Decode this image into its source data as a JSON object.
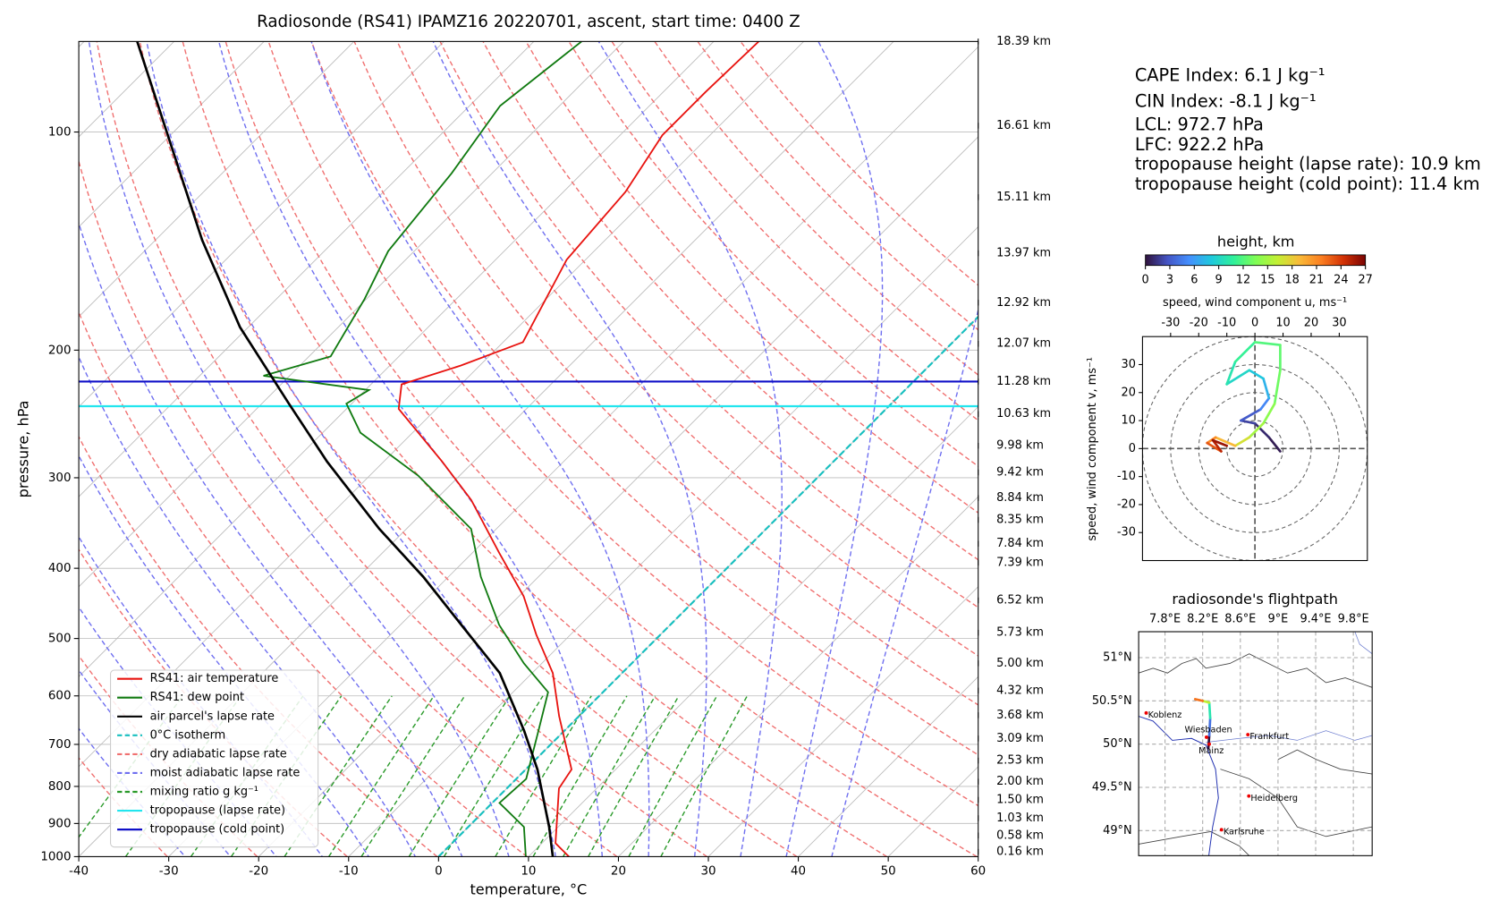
{
  "chart_data": {
    "type": "skewt",
    "title": "Radiosonde (RS41) IPAMZ16 20220701, ascent, start time: 0400 Z",
    "xlabel": "temperature, °C",
    "ylabel": "pressure, hPa",
    "xlim": [
      -40,
      60
    ],
    "ylim": [
      1000,
      75
    ],
    "xticks": [
      -40,
      -30,
      -20,
      -10,
      0,
      10,
      20,
      30,
      40,
      50,
      60
    ],
    "yticks": [
      100,
      200,
      300,
      400,
      500,
      600,
      700,
      800,
      900,
      1000
    ],
    "log_y": true,
    "grid": true,
    "series": [
      {
        "name": "RS41: air temperature",
        "color": "#e8130f",
        "pressure": [
          1000,
          958,
          805,
          758,
          640,
          558,
          494,
          437,
          381,
          322,
          285,
          241,
          223,
          210,
          195,
          150,
          121,
          101,
          88,
          75
        ],
        "values": [
          14.5,
          11.5,
          5.8,
          5.1,
          -2.2,
          -7.7,
          -13.8,
          -19.5,
          -27,
          -36,
          -43.5,
          -54.2,
          -56.6,
          -52.1,
          -47.8,
          -52.1,
          -53.1,
          -55.3,
          -55.3,
          -55
        ]
      },
      {
        "name": "RS41: dew point",
        "color": "#107a10",
        "pressure": [
          1000,
          910,
          843,
          781,
          670,
          593,
          541,
          479,
          411,
          353,
          298,
          260,
          237,
          227,
          217,
          204,
          170,
          146,
          114,
          92,
          75
        ],
        "values": [
          9.7,
          6.2,
          0.8,
          1.1,
          -2.9,
          -6.1,
          -12,
          -19,
          -26.4,
          -32.8,
          -44.6,
          -55.8,
          -60.6,
          -59.6,
          -72.9,
          -67.6,
          -70.2,
          -72.9,
          -74.5,
          -76.6,
          -74.7
        ]
      },
      {
        "name": "air parcel's lapse rate",
        "color": "#000000",
        "pressure": [
          1000,
          910,
          758,
          670,
          558,
          479,
          411,
          353,
          285,
          237,
          186,
          141,
          101,
          75
        ],
        "values": [
          12.7,
          9,
          1.3,
          -4.5,
          -13.6,
          -23.2,
          -32.8,
          -43,
          -56.3,
          -67,
          -80.9,
          -94.8,
          -110.3,
          -124.1
        ]
      }
    ],
    "isotherm_0c": {
      "name": "0°C isotherm",
      "color": "#17bfbf"
    },
    "dry_adiabats": {
      "name": "dry adiabatic lapse rate",
      "color": "#f07070"
    },
    "moist_adiabats": {
      "name": "moist adiabatic lapse rate",
      "color": "#6f6ff0"
    },
    "mixing_ratio": {
      "name": "mixing ratio g kg⁻¹",
      "color": "#2a9a2a"
    },
    "tropopauses": [
      {
        "name": "tropopause (lapse rate)",
        "color": "#22e5ee",
        "pressure": 239
      },
      {
        "name": "tropopause (cold point)",
        "color": "#1010c8",
        "pressure": 221
      }
    ],
    "heights": {
      "pressure": [
        75,
        98,
        123,
        147,
        172,
        196,
        221,
        245,
        271,
        295,
        320,
        343,
        370,
        393,
        443,
        491,
        541,
        590,
        638,
        687,
        737,
        788,
        835,
        885,
        935,
        985
      ],
      "labels": [
        {
          "value": 18.39,
          "label": "18.39 km"
        },
        {
          "value": 16.61,
          "label": "16.61 km"
        },
        {
          "value": 15.11,
          "label": "15.11 km"
        },
        {
          "value": 13.97,
          "label": "13.97 km"
        },
        {
          "value": 12.92,
          "label": "12.92 km"
        },
        {
          "value": 12.07,
          "label": "12.07 km"
        },
        {
          "value": 11.28,
          "label": "11.28 km"
        },
        {
          "value": 10.63,
          "label": "10.63 km"
        },
        {
          "value": 9.98,
          "label": "9.98 km"
        },
        {
          "value": 9.42,
          "label": "9.42 km"
        },
        {
          "value": 8.84,
          "label": "8.84 km"
        },
        {
          "value": 8.35,
          "label": "8.35 km"
        },
        {
          "value": 7.84,
          "label": "7.84 km"
        },
        {
          "value": 7.39,
          "label": "7.39 km"
        },
        {
          "value": 6.52,
          "label": "6.52 km"
        },
        {
          "value": 5.73,
          "label": "5.73 km"
        },
        {
          "value": 5,
          "label": "5.00 km"
        },
        {
          "value": 4.32,
          "label": "4.32 km"
        },
        {
          "value": 3.68,
          "label": "3.68 km"
        },
        {
          "value": 3.09,
          "label": "3.09 km"
        },
        {
          "value": 2.53,
          "label": "2.53 km"
        },
        {
          "value": 2,
          "label": "2.00 km"
        },
        {
          "value": 1.5,
          "label": "1.50 km"
        },
        {
          "value": 1.03,
          "label": "1.03 km"
        },
        {
          "value": 0.58,
          "label": "0.58 km"
        },
        {
          "value": 0.16,
          "label": "0.16 km"
        }
      ]
    }
  },
  "indices": [
    "CAPE Index: 6.1 J kg⁻¹",
    "CIN Index: -8.1 J kg⁻¹",
    "LCL: 972.7 hPa",
    "LFC: 922.2 hPa",
    "tropopause height (lapse rate): 10.9 km",
    "tropopause height (cold point): 11.4 km"
  ],
  "colorbar": {
    "label": "height, km",
    "clim": [
      0,
      27
    ],
    "ticks": [
      0,
      3,
      6,
      9,
      12,
      15,
      18,
      21,
      24,
      27
    ]
  },
  "hodograph": {
    "type": "line",
    "xlabel": "speed, wind component u, ms⁻¹",
    "ylabel": "speed, wind component v, ms⁻¹",
    "xlim": [
      -40,
      40
    ],
    "ylim": [
      -40,
      40
    ],
    "xticks": [
      -30,
      -20,
      -10,
      0,
      10,
      20,
      30
    ],
    "yticks": [
      -30,
      -20,
      -10,
      0,
      10,
      20,
      30
    ],
    "u": [
      9,
      5,
      0,
      -5,
      2,
      5,
      3,
      -2,
      -10,
      -7,
      0,
      9,
      9,
      7,
      3,
      -2,
      -7,
      -14,
      -17,
      -12,
      -15,
      -10
    ],
    "v": [
      -1,
      4,
      9,
      10,
      14,
      18,
      25,
      28,
      23,
      31,
      38,
      37,
      28,
      16,
      9,
      4,
      1,
      4,
      2,
      -1,
      3,
      1
    ],
    "height": [
      0.5,
      1,
      2,
      3,
      5,
      7,
      8,
      9,
      10,
      11,
      12,
      12.5,
      13,
      14,
      15,
      17,
      19,
      21,
      23,
      25,
      26,
      27
    ]
  },
  "map": {
    "type": "line",
    "title": "radiosonde's flightpath",
    "xlim": [
      7.52,
      10
    ],
    "ylim": [
      48.71,
      51.3
    ],
    "xticks": [
      {
        "value": 7.8,
        "label": "7.8°E"
      },
      {
        "value": 8.2,
        "label": "8.2°E"
      },
      {
        "value": 8.6,
        "label": "8.6°E"
      },
      {
        "value": 9,
        "label": "9°E"
      },
      {
        "value": 9.4,
        "label": "9.4°E"
      },
      {
        "value": 9.8,
        "label": "9.8°E"
      }
    ],
    "yticks": [
      {
        "value": 49,
        "label": "49°N"
      },
      {
        "value": 49.5,
        "label": "49.5°N"
      },
      {
        "value": 50,
        "label": "50°N"
      },
      {
        "value": 50.5,
        "label": "50.5°N"
      },
      {
        "value": 51,
        "label": "51°N"
      }
    ],
    "cities": [
      {
        "name": "Koblenz",
        "lon": 7.6,
        "lat": 50.36
      },
      {
        "name": "Wiesbaden",
        "lon": 8.24,
        "lat": 50.08
      },
      {
        "name": "Mainz",
        "lon": 8.27,
        "lat": 50
      },
      {
        "name": "Frankfurt",
        "lon": 8.68,
        "lat": 50.11
      },
      {
        "name": "Heidelberg",
        "lon": 8.69,
        "lat": 49.4
      },
      {
        "name": "Karlsruhe",
        "lon": 8.4,
        "lat": 49.01
      }
    ],
    "lon": [
      8.26,
      8.27,
      8.28,
      8.27,
      8.2,
      8.12
    ],
    "lat": [
      49.95,
      50.1,
      50.3,
      50.48,
      50.5,
      50.52
    ],
    "height": [
      0,
      4,
      10,
      16,
      22,
      27
    ]
  }
}
